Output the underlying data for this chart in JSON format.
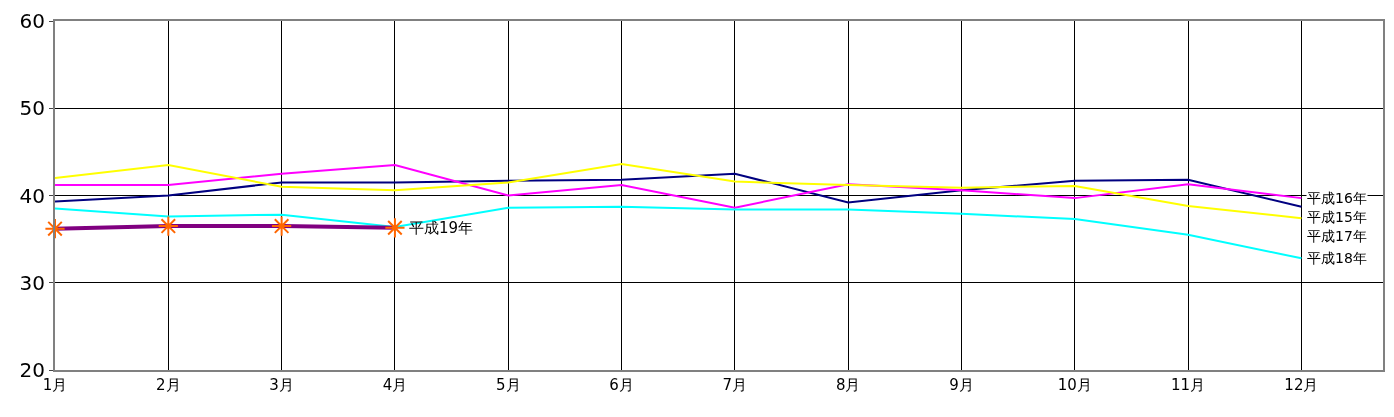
{
  "chart_data": {
    "type": "line",
    "categories": [
      "1月",
      "2月",
      "3月",
      "4月",
      "5月",
      "6月",
      "7月",
      "8月",
      "9月",
      "10月",
      "11月",
      "12月"
    ],
    "series": [
      {
        "name": "平成15年",
        "color": "#000080",
        "values": [
          39.3,
          40.0,
          41.5,
          41.5,
          41.7,
          41.8,
          42.5,
          39.2,
          40.6,
          41.7,
          41.8,
          38.7
        ]
      },
      {
        "name": "平成16年",
        "color": "#ff00ff",
        "values": [
          41.2,
          41.2,
          42.5,
          43.5,
          40.0,
          41.2,
          38.6,
          41.3,
          40.6,
          39.7,
          41.3,
          39.7
        ]
      },
      {
        "name": "平成17年",
        "color": "#ffff00",
        "values": [
          42.0,
          43.5,
          41.0,
          40.6,
          41.5,
          43.6,
          41.6,
          41.2,
          40.9,
          41.1,
          38.8,
          37.4
        ]
      },
      {
        "name": "平成18年",
        "color": "#00ffff",
        "values": [
          38.5,
          37.6,
          37.8,
          36.4,
          38.6,
          38.7,
          38.4,
          38.4,
          37.9,
          37.3,
          35.5,
          32.8
        ]
      },
      {
        "name": "平成19年",
        "color": "#800080",
        "marker": "cross",
        "values": [
          36.2,
          36.5,
          36.5,
          36.3,
          null,
          null,
          null,
          null,
          null,
          null,
          null,
          null
        ]
      }
    ],
    "ylim": [
      20,
      60
    ],
    "yticks": [
      20,
      30,
      40,
      50,
      60
    ],
    "grid": true,
    "legend": false,
    "marker": "none",
    "line_style": "solid"
  }
}
